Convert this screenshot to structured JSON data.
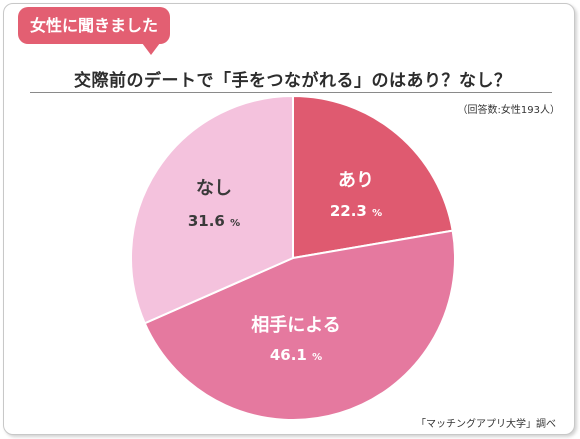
{
  "badge": "女性に聞きました",
  "title": "交際前のデートで「手をつながれる」のはあり？なし？",
  "note": "（回答数:女性193人）",
  "source": "「マッチングアプリ大学」調べ",
  "chart_data": {
    "type": "pie",
    "title": "交際前のデートで「手をつながれる」のはあり？なし？",
    "unit": "%",
    "slices": [
      {
        "label": "あり",
        "value": 22.3,
        "color": "#df5a70",
        "text_color": "#ffffff"
      },
      {
        "label": "相手による",
        "value": 46.1,
        "color": "#e5799f",
        "text_color": "#ffffff"
      },
      {
        "label": "なし",
        "value": 31.6,
        "color": "#f4c2dd",
        "text_color": "#3a3a3a"
      }
    ]
  }
}
